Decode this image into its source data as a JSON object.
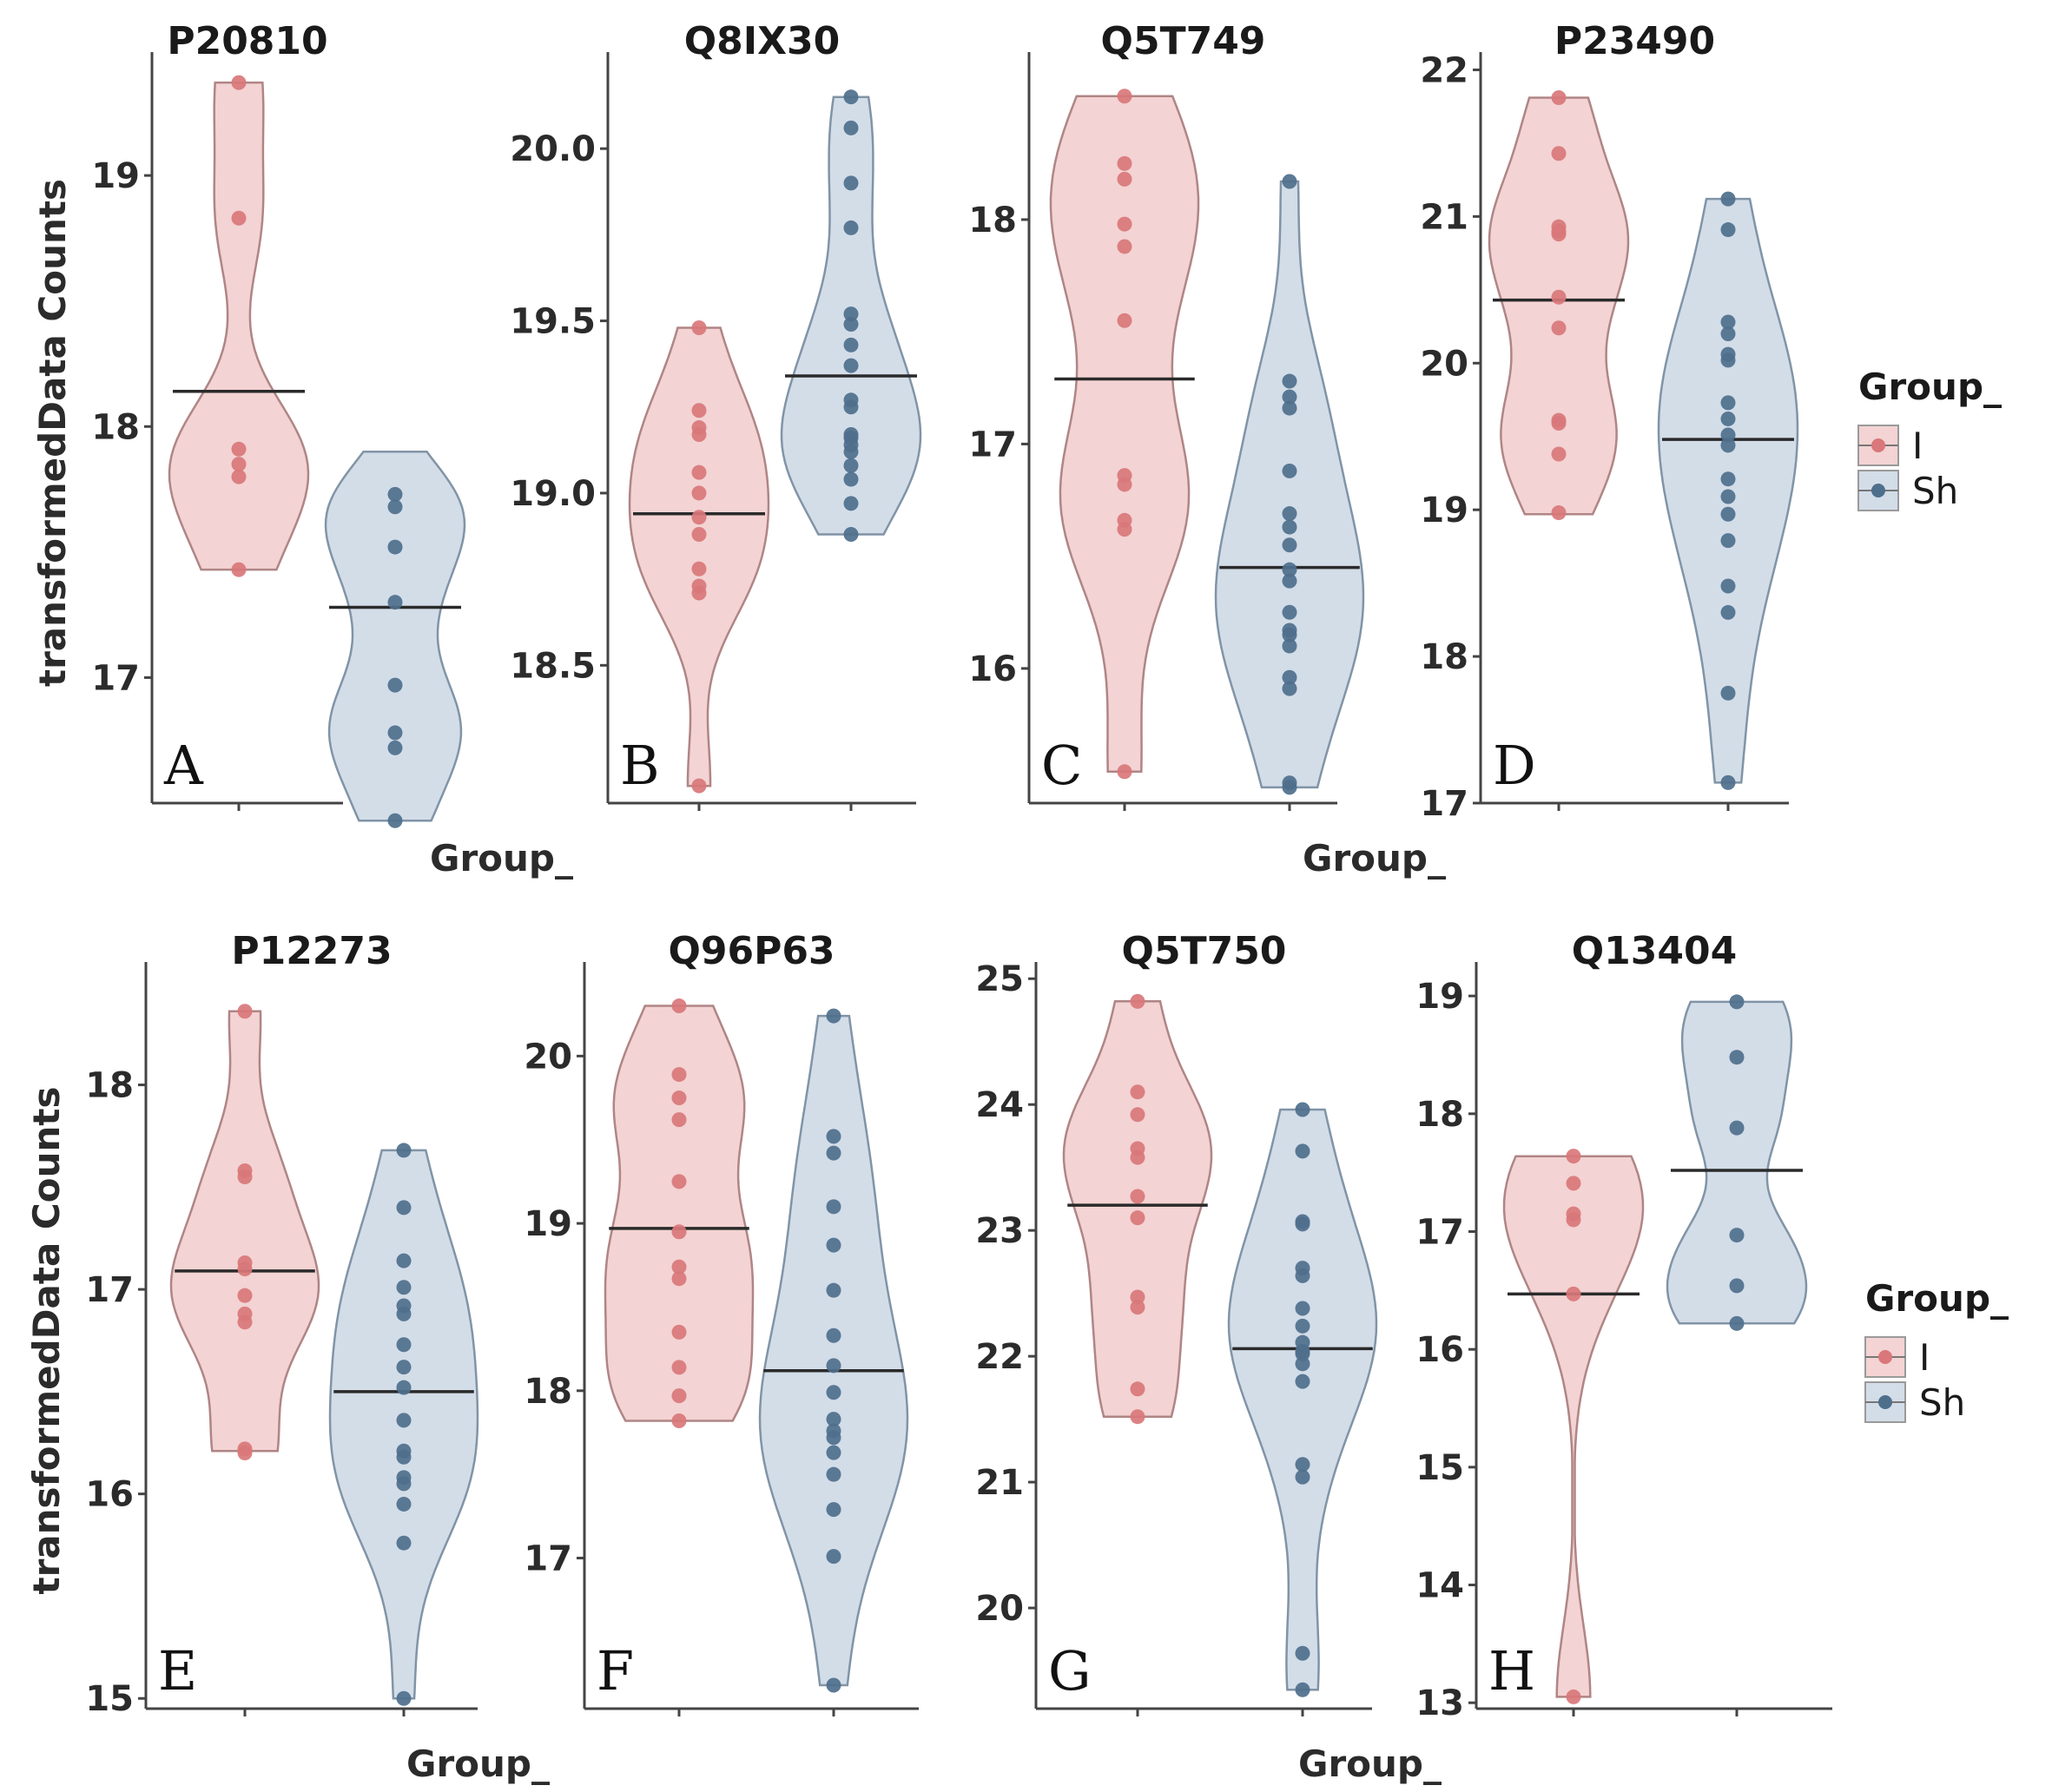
{
  "chart_data": [
    {
      "type": "violin",
      "panel_letter": "A",
      "title": "P20810",
      "ylabel": "transformedData Counts",
      "xlabel": "",
      "categories": [
        "I",
        "Sh"
      ],
      "ylim": [
        16.5,
        19.45
      ],
      "yticks": [
        17,
        18,
        19
      ],
      "series": [
        {
          "name": "I",
          "color": "#d9777a",
          "min": 17.43,
          "max": 19.37,
          "median": 18.14,
          "points": [
            19.37,
            18.83,
            17.91,
            17.85,
            17.8,
            17.43
          ]
        },
        {
          "name": "Sh",
          "color": "#4e6f8c",
          "min": 16.43,
          "max": 17.9,
          "median": 17.28,
          "points": [
            17.73,
            17.68,
            17.52,
            17.3,
            16.97,
            16.78,
            16.72,
            16.43
          ]
        }
      ]
    },
    {
      "type": "violin",
      "panel_letter": "B",
      "title": "Q8IX30",
      "ylabel": "",
      "xlabel": "Group_",
      "categories": [
        "I",
        "Sh"
      ],
      "ylim": [
        18.1,
        20.25
      ],
      "yticks": [
        18.5,
        19.0,
        19.5,
        20.0
      ],
      "series": [
        {
          "name": "I",
          "color": "#d9777a",
          "min": 18.15,
          "max": 19.48,
          "median": 18.94,
          "points": [
            19.48,
            19.24,
            19.19,
            19.17,
            19.06,
            19.0,
            18.93,
            18.88,
            18.78,
            18.73,
            18.71,
            18.15
          ]
        },
        {
          "name": "Sh",
          "color": "#4e6f8c",
          "min": 18.88,
          "max": 20.15,
          "median": 19.34,
          "points": [
            20.15,
            20.06,
            19.9,
            19.77,
            19.52,
            19.49,
            19.43,
            19.37,
            19.27,
            19.25,
            19.17,
            19.16,
            19.14,
            19.12,
            19.08,
            19.04,
            18.97,
            18.88
          ]
        }
      ]
    },
    {
      "type": "violin",
      "panel_letter": "C",
      "title": "Q5T749",
      "ylabel": "",
      "xlabel": "",
      "categories": [
        "I",
        "Sh"
      ],
      "ylim": [
        15.4,
        18.7
      ],
      "yticks": [
        16,
        17,
        18
      ],
      "series": [
        {
          "name": "I",
          "color": "#d9777a",
          "min": 15.54,
          "max": 18.55,
          "median": 17.29,
          "points": [
            18.55,
            18.25,
            18.18,
            17.98,
            17.88,
            17.55,
            16.86,
            16.82,
            16.66,
            16.62,
            15.54
          ]
        },
        {
          "name": "Sh",
          "color": "#4e6f8c",
          "min": 15.47,
          "max": 18.17,
          "median": 16.45,
          "points": [
            18.17,
            17.28,
            17.21,
            17.16,
            16.88,
            16.69,
            16.63,
            16.55,
            16.44,
            16.39,
            16.25,
            16.17,
            16.15,
            16.1,
            15.96,
            15.91,
            15.49,
            15.47
          ]
        }
      ]
    },
    {
      "type": "violin",
      "panel_letter": "D",
      "title": "P23490",
      "ylabel": "",
      "xlabel": "Group_",
      "categories": [
        "I",
        "Sh"
      ],
      "ylim": [
        17.0,
        22.05
      ],
      "yticks": [
        17,
        18,
        19,
        20,
        21,
        22
      ],
      "series": [
        {
          "name": "I",
          "color": "#d9777a",
          "min": 18.97,
          "max": 21.81,
          "median": 20.43,
          "points": [
            21.81,
            21.43,
            20.93,
            20.9,
            20.88,
            20.45,
            20.24,
            19.61,
            19.59,
            19.38,
            18.98
          ]
        },
        {
          "name": "Sh",
          "color": "#4e6f8c",
          "min": 17.14,
          "max": 21.12,
          "median": 19.48,
          "points": [
            21.12,
            20.91,
            20.28,
            20.2,
            20.06,
            20.02,
            19.73,
            19.62,
            19.51,
            19.44,
            19.21,
            19.09,
            18.97,
            18.79,
            18.48,
            18.3,
            17.75,
            17.14
          ]
        }
      ]
    },
    {
      "type": "violin",
      "panel_letter": "E",
      "title": "P12273",
      "ylabel": "transformedData Counts",
      "xlabel": "",
      "categories": [
        "I",
        "Sh"
      ],
      "ylim": [
        14.95,
        18.55
      ],
      "yticks": [
        15,
        16,
        17,
        18
      ],
      "series": [
        {
          "name": "I",
          "color": "#d9777a",
          "min": 16.21,
          "max": 18.36,
          "median": 17.09,
          "points": [
            18.36,
            17.58,
            17.55,
            17.13,
            17.1,
            16.97,
            16.88,
            16.84,
            16.22,
            16.2
          ]
        },
        {
          "name": "Sh",
          "color": "#4e6f8c",
          "min": 15.0,
          "max": 17.68,
          "median": 16.5,
          "points": [
            17.68,
            17.4,
            17.14,
            17.01,
            16.92,
            16.88,
            16.73,
            16.62,
            16.52,
            16.36,
            16.21,
            16.18,
            16.08,
            16.05,
            15.95,
            15.76,
            15.0
          ]
        }
      ]
    },
    {
      "type": "violin",
      "panel_letter": "F",
      "title": "Q96P63",
      "ylabel": "",
      "xlabel": "Group_",
      "categories": [
        "I",
        "Sh"
      ],
      "ylim": [
        16.1,
        20.5
      ],
      "yticks": [
        17,
        18,
        19,
        20
      ],
      "series": [
        {
          "name": "I",
          "color": "#d9777a",
          "min": 17.82,
          "max": 20.3,
          "median": 18.97,
          "points": [
            20.3,
            19.89,
            19.75,
            19.62,
            19.25,
            18.95,
            18.74,
            18.67,
            18.35,
            18.14,
            17.97,
            17.82
          ]
        },
        {
          "name": "Sh",
          "color": "#4e6f8c",
          "min": 16.24,
          "max": 20.24,
          "median": 18.12,
          "points": [
            20.24,
            19.52,
            19.42,
            19.1,
            18.87,
            18.6,
            18.33,
            18.15,
            17.99,
            17.83,
            17.76,
            17.72,
            17.63,
            17.5,
            17.29,
            17.01,
            16.24
          ]
        }
      ]
    },
    {
      "type": "violin",
      "panel_letter": "G",
      "title": "Q5T750",
      "ylabel": "",
      "xlabel": "",
      "categories": [
        "I",
        "Sh"
      ],
      "ylim": [
        19.2,
        25.05
      ],
      "yticks": [
        20,
        21,
        22,
        23,
        24,
        25
      ],
      "series": [
        {
          "name": "I",
          "color": "#d9777a",
          "min": 21.52,
          "max": 24.82,
          "median": 23.2,
          "points": [
            24.82,
            24.1,
            23.92,
            23.65,
            23.58,
            23.27,
            23.1,
            22.47,
            22.39,
            21.74,
            21.52
          ]
        },
        {
          "name": "Sh",
          "color": "#4e6f8c",
          "min": 19.35,
          "max": 23.96,
          "median": 22.06,
          "points": [
            23.96,
            23.63,
            23.07,
            23.05,
            22.7,
            22.64,
            22.38,
            22.24,
            22.11,
            22.04,
            22.02,
            21.94,
            21.8,
            21.14,
            21.04,
            19.64,
            19.35
          ]
        }
      ]
    },
    {
      "type": "violin",
      "panel_letter": "H",
      "title": "Q13404",
      "ylabel": "",
      "xlabel": "Group_",
      "categories": [
        "I",
        "Sh"
      ],
      "ylim": [
        12.95,
        19.2
      ],
      "yticks": [
        13,
        14,
        15,
        16,
        17,
        18,
        19
      ],
      "series": [
        {
          "name": "I",
          "color": "#d9777a",
          "min": 13.05,
          "max": 17.64,
          "median": 16.47,
          "points": [
            17.64,
            17.41,
            17.15,
            17.1,
            16.47,
            13.05
          ]
        },
        {
          "name": "Sh",
          "color": "#4e6f8c",
          "min": 16.22,
          "max": 18.95,
          "median": 17.52,
          "points": [
            18.95,
            18.48,
            17.88,
            16.97,
            16.54,
            16.22
          ]
        }
      ]
    }
  ],
  "legends": [
    {
      "title": "Group_",
      "items": [
        {
          "label": "I",
          "color": "#d9777a"
        },
        {
          "label": "Sh",
          "color": "#4e6f8c"
        }
      ]
    },
    {
      "title": "Group_",
      "items": [
        {
          "label": "I",
          "color": "#d9777a"
        },
        {
          "label": "Sh",
          "color": "#4e6f8c"
        }
      ]
    }
  ]
}
